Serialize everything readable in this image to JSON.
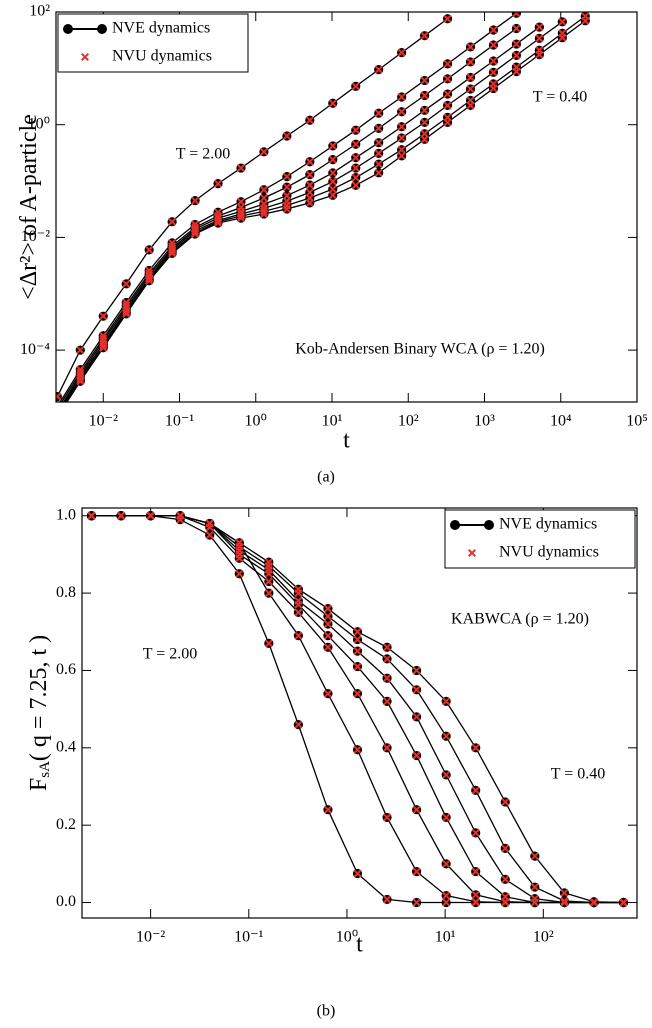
{
  "chart_data": [
    {
      "type": "line",
      "log_x": true,
      "log_y": true,
      "xlabel": "t",
      "ylabel": "<Δr²> of A-particle",
      "caption": "(a)",
      "legend": "upper left",
      "xlim": [
        0.0024,
        100000
      ],
      "ylim": [
        1.2e-05,
        100
      ],
      "xticks": [
        {
          "value": 0.01,
          "label": "10⁻²"
        },
        {
          "value": 0.1,
          "label": "10⁻¹"
        },
        {
          "value": 1,
          "label": "10⁰"
        },
        {
          "value": 10,
          "label": "10¹"
        },
        {
          "value": 100,
          "label": "10²"
        },
        {
          "value": 1000,
          "label": "10³"
        },
        {
          "value": 10000,
          "label": "10⁴"
        },
        {
          "value": 100000,
          "label": "10⁵"
        }
      ],
      "yticks": [
        {
          "value": 0.0001,
          "label": "10⁻⁴"
        },
        {
          "value": 0.01,
          "label": "10⁻²"
        },
        {
          "value": 1,
          "label": "10⁰"
        },
        {
          "value": 100,
          "label": "10²"
        }
      ],
      "annotations": [
        "T = 2.00",
        "T = 0.40",
        "Kob-Andersen Binary WCA (ρ = 1.20)"
      ],
      "x": [
        0.0025,
        0.005,
        0.01,
        0.02,
        0.04,
        0.08,
        0.16,
        0.32,
        0.64,
        1.28,
        2.56,
        5.12,
        10.24,
        20.48,
        40.96,
        81.92,
        163.84,
        327.68,
        655.36,
        1310.72,
        2621.44,
        5242.88,
        10485.76,
        20971.52
      ],
      "series": [
        {
          "name": "NVE dynamics",
          "color": "#000000",
          "marker": "circle",
          "line": true,
          "curves": [
            [
              1.5e-05,
              0.0001,
              0.0004,
              0.0015,
              0.006,
              0.019,
              0.045,
              0.09,
              0.17,
              0.33,
              0.63,
              1.2,
              2.4,
              4.8,
              9.5,
              19,
              38,
              76,
              null,
              null,
              null,
              null,
              null,
              null
            ],
            [
              1e-05,
              4.5e-05,
              0.00018,
              0.0007,
              0.0026,
              0.008,
              0.017,
              0.028,
              0.043,
              0.07,
              0.12,
              0.22,
              0.42,
              0.8,
              1.6,
              3.1,
              6.1,
              12,
              24,
              48,
              95,
              null,
              null,
              null
            ],
            [
              9e-06,
              4e-05,
              0.00016,
              0.00062,
              0.0023,
              0.007,
              0.015,
              0.024,
              0.034,
              0.05,
              0.078,
              0.13,
              0.24,
              0.45,
              0.86,
              1.7,
              3.3,
              6.5,
              13,
              26,
              51,
              null,
              null,
              null
            ],
            [
              8e-06,
              3.6e-05,
              0.000145,
              0.00056,
              0.0021,
              0.0064,
              0.014,
              0.022,
              0.029,
              0.039,
              0.055,
              0.085,
              0.14,
              0.26,
              0.48,
              0.92,
              1.8,
              3.5,
              6.9,
              13.5,
              27,
              54,
              null,
              null
            ],
            [
              7.5e-06,
              3.3e-05,
              0.00013,
              0.00051,
              0.0019,
              0.006,
              0.013,
              0.02,
              0.026,
              0.033,
              0.044,
              0.063,
              0.098,
              0.17,
              0.31,
              0.58,
              1.1,
              2.2,
              4.3,
              8.5,
              17,
              34,
              67,
              null
            ],
            [
              7e-06,
              3e-05,
              0.00012,
              0.00047,
              0.0018,
              0.0056,
              0.012,
              0.019,
              0.024,
              0.029,
              0.037,
              0.05,
              0.072,
              0.115,
              0.2,
              0.36,
              0.69,
              1.35,
              2.7,
              5.3,
              10.5,
              21,
              42,
              84
            ],
            [
              6.5e-06,
              2.8e-05,
              0.00011,
              0.00044,
              0.0017,
              0.0052,
              0.0115,
              0.018,
              0.022,
              0.026,
              0.032,
              0.041,
              0.056,
              0.084,
              0.14,
              0.28,
              0.55,
              1.1,
              2.2,
              4.4,
              8.8,
              17.5,
              35,
              70
            ]
          ]
        },
        {
          "name": "NVU dynamics",
          "color": "#e3302b",
          "marker": "cross",
          "line": false,
          "curves": [
            [
              1.5e-05,
              0.0001,
              0.0004,
              0.0015,
              0.006,
              0.019,
              0.045,
              0.09,
              0.17,
              0.33,
              0.63,
              1.2,
              2.4,
              4.8,
              9.5,
              19,
              38,
              76,
              null,
              null,
              null,
              null,
              null,
              null
            ],
            [
              1e-05,
              4.5e-05,
              0.00018,
              0.0007,
              0.0026,
              0.008,
              0.017,
              0.028,
              0.043,
              0.07,
              0.12,
              0.22,
              0.42,
              0.8,
              1.6,
              3.1,
              6.1,
              12,
              24,
              48,
              95,
              null,
              null,
              null
            ],
            [
              9e-06,
              4e-05,
              0.00016,
              0.00062,
              0.0023,
              0.007,
              0.015,
              0.024,
              0.034,
              0.05,
              0.078,
              0.13,
              0.24,
              0.45,
              0.86,
              1.7,
              3.3,
              6.5,
              13,
              26,
              51,
              null,
              null,
              null
            ],
            [
              8e-06,
              3.6e-05,
              0.000145,
              0.00056,
              0.0021,
              0.0064,
              0.014,
              0.022,
              0.029,
              0.039,
              0.055,
              0.085,
              0.14,
              0.26,
              0.48,
              0.92,
              1.8,
              3.5,
              6.9,
              13.5,
              27,
              54,
              null,
              null
            ],
            [
              7.5e-06,
              3.3e-05,
              0.00013,
              0.00051,
              0.0019,
              0.006,
              0.013,
              0.02,
              0.026,
              0.033,
              0.044,
              0.063,
              0.098,
              0.17,
              0.31,
              0.58,
              1.1,
              2.2,
              4.3,
              8.5,
              17,
              34,
              67,
              null
            ],
            [
              7e-06,
              3e-05,
              0.00012,
              0.00047,
              0.0018,
              0.0056,
              0.012,
              0.019,
              0.024,
              0.029,
              0.037,
              0.05,
              0.072,
              0.115,
              0.2,
              0.36,
              0.69,
              1.35,
              2.7,
              5.3,
              10.5,
              21,
              42,
              84
            ],
            [
              6.5e-06,
              2.8e-05,
              0.00011,
              0.00044,
              0.0017,
              0.0052,
              0.0115,
              0.018,
              0.022,
              0.026,
              0.032,
              0.041,
              0.056,
              0.084,
              0.14,
              0.28,
              0.55,
              1.1,
              2.2,
              4.4,
              8.8,
              17.5,
              35,
              70
            ]
          ]
        }
      ]
    },
    {
      "type": "line",
      "log_x": true,
      "log_y": false,
      "xlabel": "t",
      "ylabel": "F",
      "ylabel_sub": "sA",
      "ylabel_rest": "( q = 7.25, t )",
      "caption": "(b)",
      "legend": "upper right",
      "xlim": [
        0.002,
        900
      ],
      "ylim": [
        -0.04,
        1.02
      ],
      "xticks": [
        {
          "value": 0.01,
          "label": "10⁻²"
        },
        {
          "value": 0.1,
          "label": "10⁻¹"
        },
        {
          "value": 1,
          "label": "10⁰"
        },
        {
          "value": 10,
          "label": "10¹"
        },
        {
          "value": 100,
          "label": "10²"
        }
      ],
      "yticks": [
        {
          "value": 0,
          "label": "0.0"
        },
        0.2,
        0.4,
        0.6,
        0.8,
        {
          "value": 1,
          "label": "1.0"
        }
      ],
      "annotations": [
        "T = 2.00",
        "KABWCA (ρ = 1.20)",
        "T = 0.40"
      ],
      "x": [
        0.0025,
        0.005,
        0.01,
        0.02,
        0.04,
        0.08,
        0.16,
        0.32,
        0.64,
        1.28,
        2.56,
        5.12,
        10.24,
        20.48,
        40.96,
        81.92,
        163.84,
        327.68,
        655.36
      ],
      "series": [
        {
          "name": "NVE dynamics",
          "color": "#000000",
          "marker": "circle",
          "line": true,
          "curves": [
            [
              1,
              1,
              1,
              0.99,
              0.95,
              0.85,
              0.67,
              0.46,
              0.24,
              0.075,
              0.008,
              0,
              0,
              0,
              0,
              0,
              0,
              0,
              0
            ],
            [
              1,
              1,
              1,
              1,
              0.98,
              0.93,
              0.8,
              0.69,
              0.54,
              0.395,
              0.22,
              0.08,
              0.018,
              0.002,
              0,
              0,
              0,
              0,
              0
            ],
            [
              1,
              1,
              1,
              1,
              0.97,
              0.89,
              0.83,
              0.75,
              0.66,
              0.54,
              0.4,
              0.24,
              0.1,
              0.02,
              0.002,
              0,
              0,
              0,
              0
            ],
            [
              1,
              1,
              1,
              1,
              0.98,
              0.9,
              0.85,
              0.77,
              0.69,
              0.61,
              0.52,
              0.38,
              0.22,
              0.08,
              0.015,
              0,
              0,
              0,
              0
            ],
            [
              1,
              1,
              1,
              1,
              0.98,
              0.91,
              0.86,
              0.78,
              0.72,
              0.65,
              0.58,
              0.48,
              0.33,
              0.18,
              0.06,
              0.01,
              0,
              0,
              0
            ],
            [
              1,
              1,
              1,
              1,
              0.98,
              0.92,
              0.87,
              0.8,
              0.74,
              0.68,
              0.63,
              0.55,
              0.43,
              0.29,
              0.14,
              0.04,
              0.004,
              0,
              0
            ],
            [
              1,
              1,
              1,
              1,
              0.98,
              0.93,
              0.88,
              0.81,
              0.76,
              0.7,
              0.66,
              0.6,
              0.52,
              0.4,
              0.26,
              0.12,
              0.025,
              0.002,
              0
            ]
          ]
        },
        {
          "name": "NVU dynamics",
          "color": "#e3302b",
          "marker": "cross",
          "line": false,
          "curves": [
            [
              1,
              1,
              1,
              0.99,
              0.95,
              0.85,
              0.67,
              0.46,
              0.24,
              0.075,
              0.008,
              0,
              0,
              0,
              0,
              0,
              0,
              0,
              0
            ],
            [
              1,
              1,
              1,
              1,
              0.98,
              0.93,
              0.8,
              0.69,
              0.54,
              0.395,
              0.22,
              0.08,
              0.018,
              0.002,
              0,
              0,
              0,
              0,
              0
            ],
            [
              1,
              1,
              1,
              1,
              0.97,
              0.89,
              0.83,
              0.75,
              0.66,
              0.54,
              0.4,
              0.24,
              0.1,
              0.02,
              0.002,
              0,
              0,
              0,
              0
            ],
            [
              1,
              1,
              1,
              1,
              0.98,
              0.9,
              0.85,
              0.77,
              0.69,
              0.61,
              0.52,
              0.38,
              0.22,
              0.08,
              0.015,
              0,
              0,
              0,
              0
            ],
            [
              1,
              1,
              1,
              1,
              0.98,
              0.91,
              0.86,
              0.78,
              0.72,
              0.65,
              0.58,
              0.48,
              0.33,
              0.18,
              0.06,
              0.01,
              0,
              0,
              0
            ],
            [
              1,
              1,
              1,
              1,
              0.98,
              0.92,
              0.87,
              0.8,
              0.74,
              0.68,
              0.63,
              0.55,
              0.43,
              0.29,
              0.14,
              0.04,
              0.004,
              0,
              0
            ],
            [
              1,
              1,
              1,
              1,
              0.98,
              0.93,
              0.88,
              0.81,
              0.76,
              0.7,
              0.66,
              0.6,
              0.52,
              0.4,
              0.26,
              0.12,
              0.025,
              0.002,
              0
            ]
          ]
        }
      ]
    }
  ]
}
